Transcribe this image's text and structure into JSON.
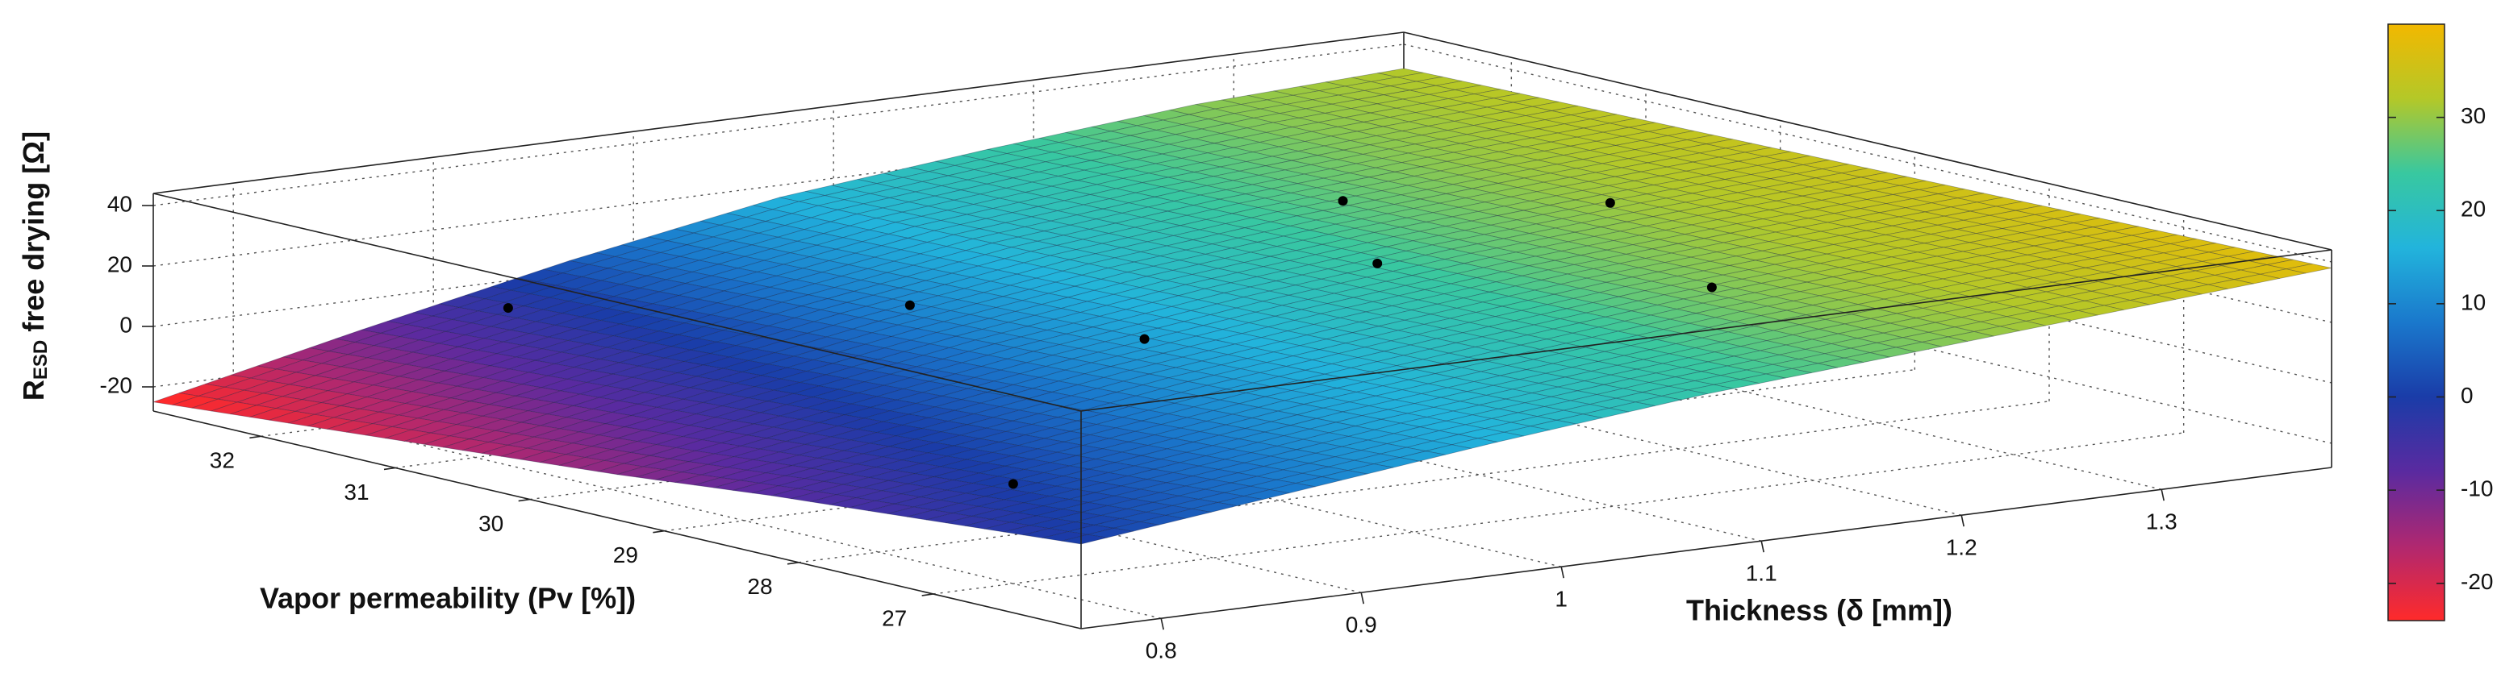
{
  "chart_data": {
    "type": "surface",
    "zlabel": {
      "main": "R",
      "sub": "ESD",
      "rest": " free drying [Ω]"
    },
    "ylabel": "Vapor permeability (Pv [%])",
    "xlabel": "Thickness (δ [mm])",
    "xlim": [
      0.76,
      1.385
    ],
    "ylim": [
      25.9,
      32.8
    ],
    "zlim": [
      -28,
      44
    ],
    "xticks": [
      0.8,
      0.9,
      1,
      1.1,
      1.2,
      1.3
    ],
    "yticks": [
      27,
      28,
      29,
      30,
      31,
      32
    ],
    "zticks": [
      -20,
      0,
      20,
      40
    ],
    "grid": true,
    "surface": {
      "x": [
        0.76,
        0.864,
        0.968,
        1.073,
        1.177,
        1.281,
        1.385
      ],
      "y": [
        25.9,
        27.05,
        28.2,
        29.35,
        30.5,
        31.65,
        32.8
      ],
      "z": [
        [
          0,
          8,
          16,
          23,
          28,
          33,
          38
        ],
        [
          -4,
          5,
          14,
          21,
          28,
          33,
          37
        ],
        [
          -8,
          2,
          12,
          20,
          27,
          32,
          36
        ],
        [
          -13,
          -1,
          10,
          19,
          26,
          31,
          35
        ],
        [
          -17,
          -4,
          8,
          18,
          25,
          30,
          34
        ],
        [
          -21,
          -7,
          6,
          17,
          24,
          29,
          33
        ],
        [
          -25,
          -10,
          4,
          16,
          23,
          29,
          32
        ]
      ]
    },
    "points": {
      "x": [
        0.8,
        1.0,
        0.95,
        0.85,
        1.2,
        1.15,
        1.3,
        1.25
      ],
      "y": [
        27,
        29,
        30,
        31.5,
        30.5,
        29.5,
        30,
        28.5
      ],
      "z": [
        5,
        15,
        20,
        12,
        28,
        22,
        24,
        16
      ]
    },
    "point_color": "#000000",
    "colorbar": {
      "clim": [
        -24,
        40
      ],
      "ticks": [
        -20,
        -10,
        0,
        10,
        20,
        30
      ],
      "colormap": [
        "#ff2a2a",
        "#b02870",
        "#5a2aa0",
        "#1a3ca8",
        "#1a78cc",
        "#22b4dc",
        "#38c8a0",
        "#b4c828",
        "#f2b800"
      ]
    }
  }
}
